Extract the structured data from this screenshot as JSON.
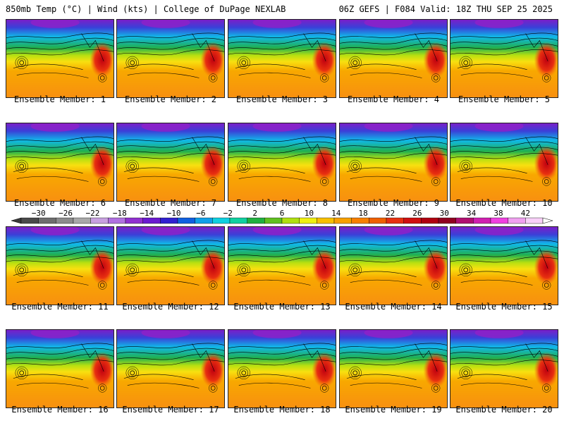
{
  "header": {
    "title_left": "850mb Temp (°C) | Wind (kts) | College of DuPage NEXLAB",
    "title_right": "06Z GEFS | F084 Valid: 18Z THU SEP 25 2025"
  },
  "members": [
    {
      "label": "Ensemble Member: 1"
    },
    {
      "label": "Ensemble Member: 2"
    },
    {
      "label": "Ensemble Member: 3"
    },
    {
      "label": "Ensemble Member: 4"
    },
    {
      "label": "Ensemble Member: 5"
    },
    {
      "label": "Ensemble Member: 6"
    },
    {
      "label": "Ensemble Member: 7"
    },
    {
      "label": "Ensemble Member: 8"
    },
    {
      "label": "Ensemble Member: 9"
    },
    {
      "label": "Ensemble Member: 10"
    },
    {
      "label": "Ensemble Member: 11"
    },
    {
      "label": "Ensemble Member: 12"
    },
    {
      "label": "Ensemble Member: 13"
    },
    {
      "label": "Ensemble Member: 14"
    },
    {
      "label": "Ensemble Member: 15"
    },
    {
      "label": "Ensemble Member: 16"
    },
    {
      "label": "Ensemble Member: 17"
    },
    {
      "label": "Ensemble Member: 18"
    },
    {
      "label": "Ensemble Member: 19"
    },
    {
      "label": "Ensemble Member: 20"
    }
  ],
  "colorbar": {
    "ticks": [
      "−30",
      "−26",
      "−22",
      "−18",
      "−14",
      "−10",
      "−6",
      "−2",
      "2",
      "6",
      "10",
      "14",
      "18",
      "22",
      "26",
      "30",
      "34",
      "38",
      "42"
    ],
    "colors": [
      "#4a4a4a",
      "#6e6e6e",
      "#8c8c8c",
      "#a8a8a8",
      "#c8a0e0",
      "#b070e0",
      "#9030d0",
      "#6a1ad0",
      "#3020d0",
      "#1060e0",
      "#10a0e8",
      "#10d0e0",
      "#10d0a0",
      "#20b040",
      "#60c020",
      "#b0e010",
      "#f0f010",
      "#f8c000",
      "#f8a000",
      "#f88000",
      "#f06000",
      "#e83010",
      "#d01010",
      "#b00010",
      "#900020",
      "#b01070",
      "#d020b0",
      "#f040e0",
      "#f0a0f0",
      "#f8d0f8"
    ]
  }
}
